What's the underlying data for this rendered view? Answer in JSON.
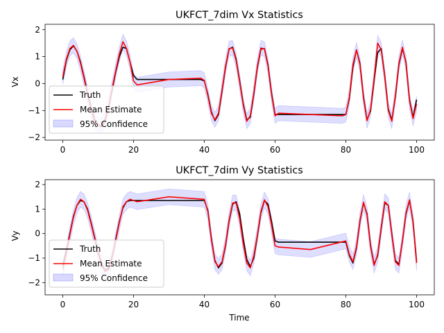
{
  "figure": {
    "xlabel": "Time"
  },
  "colors": {
    "truth": "#000000",
    "estimate": "#ff0000",
    "confidence": "#0000ff"
  },
  "chart_data": [
    {
      "type": "line",
      "title": "UKFCT_7dim Vx Statistics",
      "xlabel": "",
      "ylabel": "Vx",
      "xlim": [
        -5,
        105
      ],
      "ylim": [
        -2.1,
        2.2
      ],
      "xticks": [
        0,
        20,
        40,
        60,
        80,
        100
      ],
      "yticks": [
        -2,
        -1,
        0,
        1,
        2
      ],
      "legend": {
        "position": "lower-left",
        "entries": [
          "Truth",
          "Mean Estimate",
          "95% Confidence"
        ]
      },
      "series": [
        {
          "name": "Truth",
          "x": [
            0,
            1,
            2,
            3,
            4,
            5,
            6,
            7,
            8,
            9,
            10,
            11,
            12,
            13,
            14,
            15,
            16,
            17,
            18,
            19,
            20,
            21,
            30,
            39,
            40,
            41,
            42,
            43,
            44,
            45,
            46,
            47,
            48,
            49,
            50,
            51,
            52,
            53,
            54,
            55,
            56,
            57,
            58,
            59,
            60,
            61,
            70,
            79,
            80,
            81,
            82,
            83,
            84,
            85,
            86,
            87,
            88,
            89,
            90,
            91,
            92,
            93,
            94,
            95,
            96,
            97,
            98,
            99,
            100
          ],
          "y": [
            0.15,
            0.85,
            1.25,
            1.4,
            1.2,
            0.8,
            0.25,
            -0.35,
            -0.9,
            -1.35,
            -1.55,
            -1.6,
            -1.35,
            -0.85,
            -0.2,
            0.45,
            1.0,
            1.35,
            1.3,
            0.8,
            0.3,
            0.15,
            0.15,
            0.15,
            0.1,
            -0.4,
            -1.05,
            -1.38,
            -1.15,
            -0.3,
            0.6,
            1.28,
            1.35,
            0.9,
            0.1,
            -0.75,
            -1.35,
            -1.25,
            -0.4,
            0.6,
            1.28,
            1.3,
            0.7,
            -0.35,
            -1.15,
            -1.15,
            -1.15,
            -1.15,
            -1.15,
            -0.55,
            0.6,
            1.25,
            0.75,
            -0.5,
            -1.35,
            -1.0,
            0.1,
            1.15,
            1.3,
            0.3,
            -0.95,
            -1.35,
            -0.5,
            0.7,
            1.3,
            0.8,
            -0.6,
            -1.25,
            -0.6
          ]
        },
        {
          "name": "Mean Estimate",
          "x": [
            0,
            1,
            2,
            3,
            4,
            5,
            6,
            7,
            8,
            9,
            10,
            11,
            12,
            13,
            14,
            15,
            16,
            17,
            18,
            19,
            20,
            21,
            30,
            39,
            40,
            41,
            42,
            43,
            44,
            45,
            46,
            47,
            48,
            49,
            50,
            51,
            52,
            53,
            54,
            55,
            56,
            57,
            58,
            59,
            60,
            61,
            70,
            79,
            80,
            81,
            82,
            83,
            84,
            85,
            86,
            87,
            88,
            89,
            90,
            91,
            92,
            93,
            94,
            95,
            96,
            97,
            98,
            99,
            100
          ],
          "y": [
            0.25,
            0.9,
            1.3,
            1.42,
            1.2,
            0.75,
            0.2,
            -0.4,
            -0.95,
            -1.4,
            -1.55,
            -1.58,
            -1.3,
            -0.8,
            -0.15,
            0.5,
            1.1,
            1.55,
            1.3,
            0.8,
            0.1,
            -0.05,
            0.15,
            0.2,
            0.12,
            -0.45,
            -1.1,
            -1.35,
            -1.1,
            -0.25,
            0.65,
            1.3,
            1.32,
            0.85,
            0.05,
            -0.8,
            -1.4,
            -1.2,
            -0.35,
            0.65,
            1.32,
            1.28,
            0.65,
            -0.4,
            -1.2,
            -1.1,
            -1.15,
            -1.2,
            -1.15,
            -0.5,
            0.7,
            1.25,
            0.7,
            -0.55,
            -1.38,
            -0.95,
            0.2,
            1.5,
            1.25,
            0.25,
            -1.0,
            -1.4,
            -0.45,
            0.75,
            1.35,
            0.75,
            -0.65,
            -1.3,
            -0.75
          ]
        }
      ],
      "confidence_band": {
        "name": "95% Confidence",
        "half_width": 0.28
      }
    },
    {
      "type": "line",
      "title": "UKFCT_7dim Vy Statistics",
      "xlabel": "Time",
      "ylabel": "Vy",
      "xlim": [
        -5,
        105
      ],
      "ylim": [
        -2.5,
        2.2
      ],
      "xticks": [
        0,
        20,
        40,
        60,
        80,
        100
      ],
      "yticks": [
        -2,
        -1,
        0,
        1,
        2
      ],
      "legend": {
        "position": "lower-left",
        "entries": [
          "Truth",
          "Mean Estimate",
          "95% Confidence"
        ]
      },
      "series": [
        {
          "name": "Truth",
          "x": [
            0,
            1,
            2,
            3,
            4,
            5,
            6,
            7,
            8,
            9,
            10,
            11,
            12,
            13,
            14,
            15,
            16,
            17,
            18,
            19,
            20,
            21,
            30,
            40,
            41,
            42,
            43,
            44,
            45,
            46,
            47,
            48,
            49,
            50,
            51,
            52,
            53,
            54,
            55,
            56,
            57,
            58,
            59,
            60,
            61,
            70,
            80,
            81,
            82,
            83,
            84,
            85,
            86,
            87,
            88,
            89,
            90,
            91,
            92,
            93,
            94,
            95,
            96,
            97,
            98,
            99,
            100
          ],
          "y": [
            -1.3,
            -0.7,
            0.0,
            0.7,
            1.15,
            1.35,
            1.3,
            1.0,
            0.45,
            -0.15,
            -0.75,
            -1.25,
            -1.5,
            -1.4,
            -0.9,
            -0.2,
            0.5,
            1.05,
            1.3,
            1.35,
            1.35,
            1.35,
            1.35,
            1.35,
            0.95,
            -0.2,
            -1.1,
            -1.4,
            -1.2,
            -0.5,
            0.5,
            1.2,
            1.3,
            0.8,
            -0.2,
            -1.05,
            -1.35,
            -1.0,
            -0.1,
            0.85,
            1.35,
            1.2,
            0.5,
            -0.3,
            -0.35,
            -0.35,
            -0.35,
            -0.9,
            -1.2,
            -0.6,
            0.5,
            1.25,
            0.8,
            -0.5,
            -1.25,
            -0.9,
            0.2,
            1.25,
            1.15,
            0.0,
            -1.1,
            -1.25,
            -0.3,
            0.8,
            1.35,
            0.5,
            -1.15
          ]
        },
        {
          "name": "Mean Estimate",
          "x": [
            0,
            1,
            2,
            3,
            4,
            5,
            6,
            7,
            8,
            9,
            10,
            11,
            12,
            13,
            14,
            15,
            16,
            17,
            18,
            19,
            20,
            21,
            30,
            40,
            41,
            42,
            43,
            44,
            45,
            46,
            47,
            48,
            49,
            50,
            51,
            52,
            53,
            54,
            55,
            56,
            57,
            58,
            59,
            60,
            61,
            70,
            80,
            81,
            82,
            83,
            84,
            85,
            86,
            87,
            88,
            89,
            90,
            91,
            92,
            93,
            94,
            95,
            96,
            97,
            98,
            99,
            100
          ],
          "y": [
            -1.45,
            -0.8,
            -0.05,
            0.65,
            1.15,
            1.4,
            1.3,
            0.95,
            0.4,
            -0.2,
            -0.8,
            -1.3,
            -1.55,
            -1.45,
            -0.95,
            -0.25,
            0.45,
            1.1,
            1.3,
            1.4,
            1.35,
            1.3,
            1.5,
            1.4,
            0.9,
            -0.25,
            -1.15,
            -1.35,
            -1.15,
            -0.45,
            0.55,
            1.25,
            1.25,
            0.6,
            -0.4,
            -1.2,
            -1.4,
            -0.9,
            -0.05,
            0.9,
            1.38,
            1.1,
            0.35,
            -0.5,
            -0.55,
            -0.65,
            -0.3,
            -0.85,
            -1.15,
            -0.55,
            0.55,
            1.28,
            0.75,
            -0.55,
            -1.3,
            -0.85,
            0.25,
            1.3,
            1.15,
            -0.05,
            -1.15,
            -1.3,
            -0.3,
            0.85,
            1.38,
            0.45,
            -1.2
          ]
        }
      ],
      "confidence_band": {
        "name": "95% Confidence",
        "half_width": 0.32
      }
    }
  ]
}
